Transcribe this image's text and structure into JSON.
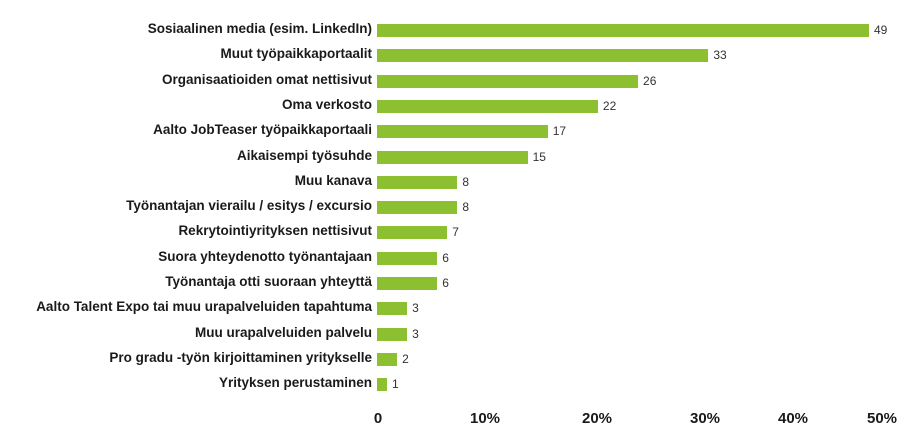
{
  "chart_data": {
    "type": "bar",
    "orientation": "horizontal",
    "title": "",
    "xlabel": "",
    "ylabel": "",
    "xlim": [
      0,
      50
    ],
    "grid": false,
    "legend": null,
    "bar_color": "#8cc031",
    "categories": [
      "Sosiaalinen media (esim. LinkedIn)",
      "Muut työpaikkaportaalit",
      "Organisaatioiden omat nettisivut",
      "Oma verkosto",
      "Aalto JobTeaser työpaikkaportaali",
      "Aikaisempi työsuhde",
      "Muu kanava",
      "Työnantajan vierailu / esitys / excursio",
      "Rekrytointiyrityksen nettisivut",
      "Suora yhteydenotto työnantajaan",
      "Työnantaja otti suoraan yhteyttä",
      "Aalto Talent Expo tai muu urapalveluiden tapahtuma",
      "Muu urapalveluiden palvelu",
      "Pro gradu -työn  kirjoittaminen yritykselle",
      "Yrityksen perustaminen"
    ],
    "values": [
      49,
      33,
      26,
      22,
      17,
      15,
      8,
      8,
      7,
      6,
      6,
      3,
      3,
      2,
      1
    ],
    "value_labels": [
      "49",
      "33",
      "26",
      "22",
      "17",
      "15",
      "8",
      "8",
      "7",
      "6",
      "6",
      "3",
      "3",
      "2",
      "1"
    ],
    "x_ticks": [
      "0",
      "10%",
      "20%",
      "30%",
      "40%",
      "50%"
    ]
  }
}
